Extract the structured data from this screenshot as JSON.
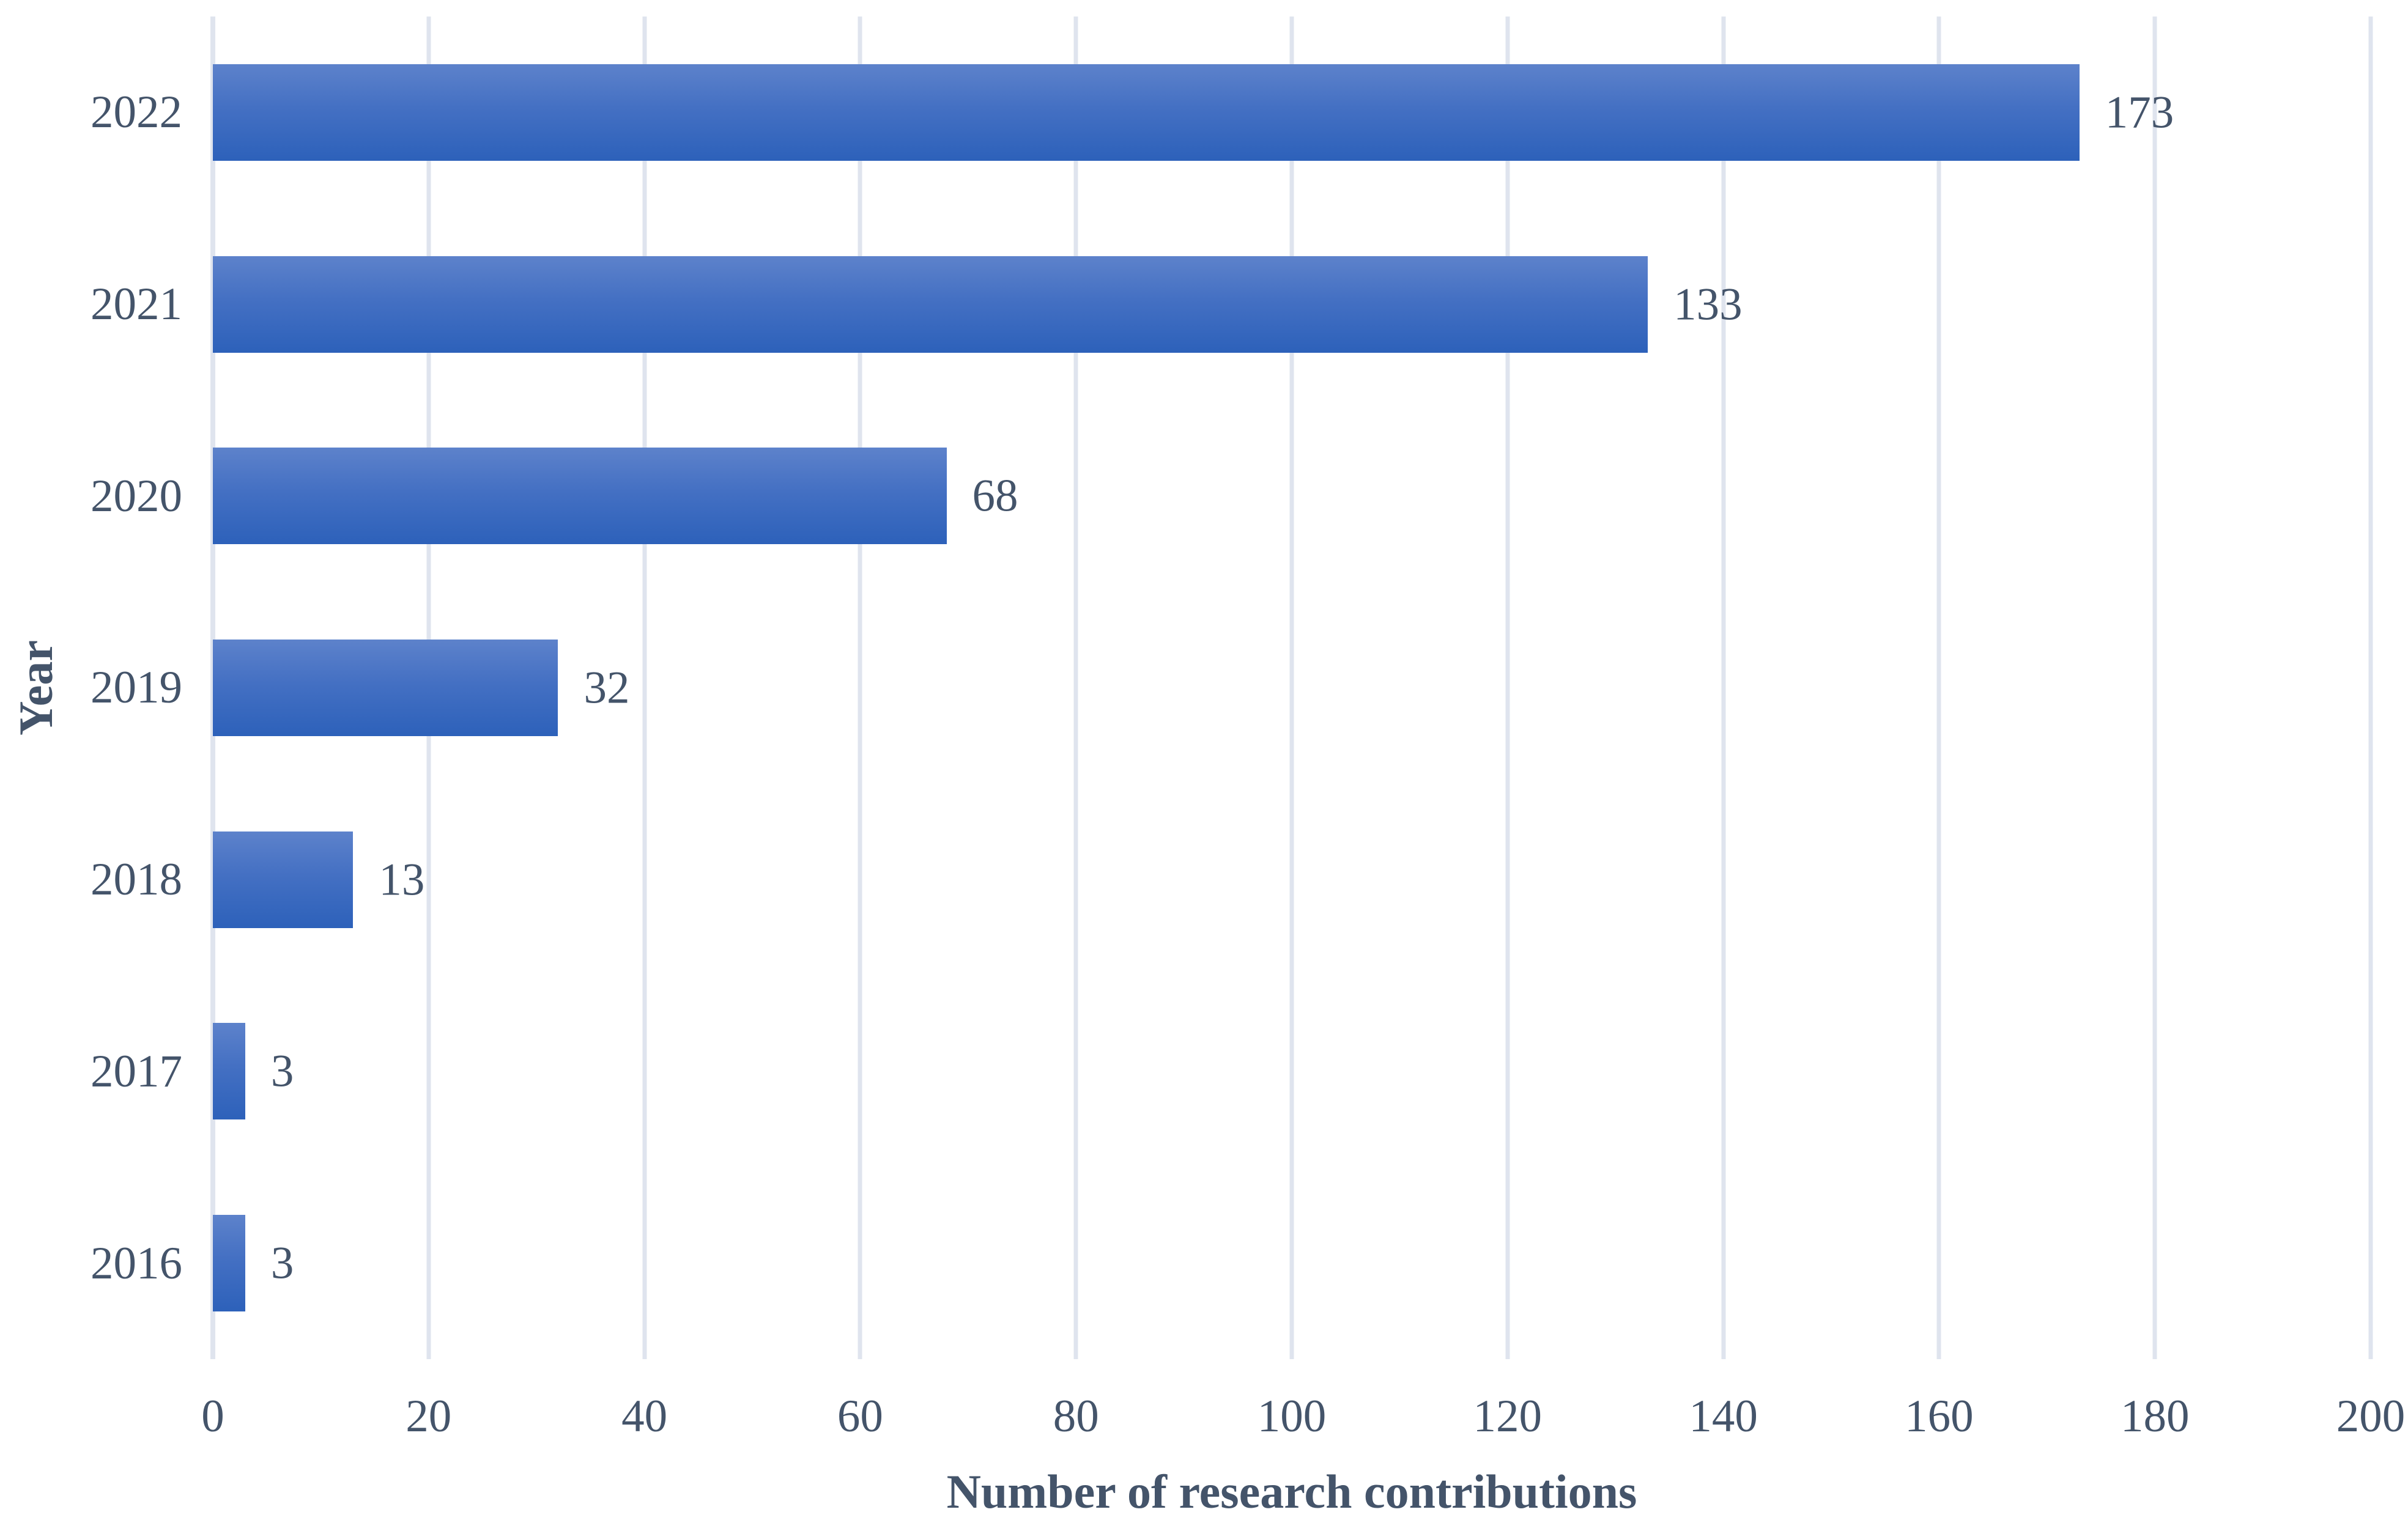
{
  "chart_data": {
    "type": "bar",
    "orientation": "horizontal",
    "title": "",
    "xlabel": "Number of research contributions",
    "ylabel": "Year",
    "categories": [
      "2022",
      "2021",
      "2020",
      "2019",
      "2018",
      "2017",
      "2016"
    ],
    "values": [
      173,
      133,
      68,
      32,
      13,
      3,
      3
    ],
    "data_labels": [
      "173",
      "133",
      "68",
      "32",
      "13",
      "3",
      "3"
    ],
    "xlim": [
      0,
      200
    ],
    "xticks": [
      0,
      20,
      40,
      60,
      80,
      100,
      120,
      140,
      160,
      180,
      200
    ],
    "grid": "vertical-gridlines-on",
    "legend": "none"
  },
  "colors": {
    "background": "#ffffff",
    "text": "#44546a",
    "gridline": "#dfe4ee",
    "bar_gradient_top": "#5d82cb",
    "bar_gradient_bottom": "#2d61ba"
  }
}
